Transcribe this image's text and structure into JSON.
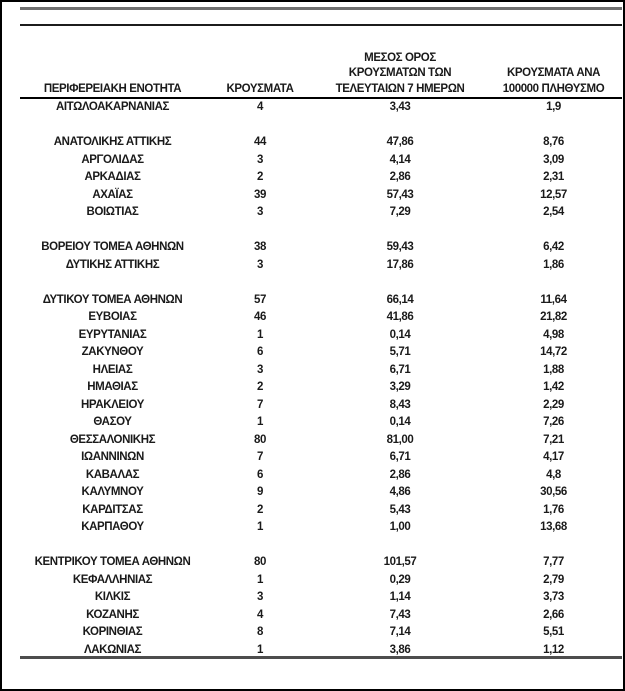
{
  "colors": {
    "text": "#1a1a1a",
    "rule_black": "#000000",
    "rule_dark_gray": "#4d4d4d",
    "rule_gray": "#6f6f6f"
  },
  "table": {
    "headers": {
      "col1": "ΠΕΡΙΦΕΡΕΙΑΚΗ ΕΝΟΤΗΤΑ",
      "col2": "ΚΡΟΥΣΜΑΤΑ",
      "col3_line1": "ΜΕΣΟΣ ΟΡΟΣ",
      "col3_line2": "ΚΡΟΥΣΜΑΤΩΝ ΤΩΝ",
      "col3_line3": "ΤΕΛΕΥΤΑΙΩΝ 7 ΗΜΕΡΩΝ",
      "col4_line1": "ΚΡΟΥΣΜΑΤΑ ΑΝΑ",
      "col4_line2": "100000 ΠΛΗΘΥΣΜΟ"
    },
    "rows": [
      {
        "name": "ΑΙΤΩΛΟΑΚΑΡΝΑΝΙΑΣ",
        "cases": "4",
        "avg7": "3,43",
        "per100k": "1,9"
      },
      {
        "spacer": true
      },
      {
        "name": "ΑΝΑΤΟΛΙΚΗΣ ΑΤΤΙΚΗΣ",
        "cases": "44",
        "avg7": "47,86",
        "per100k": "8,76"
      },
      {
        "name": "ΑΡΓΟΛΙΔΑΣ",
        "cases": "3",
        "avg7": "4,14",
        "per100k": "3,09"
      },
      {
        "name": "ΑΡΚΑΔΙΑΣ",
        "cases": "2",
        "avg7": "2,86",
        "per100k": "2,31"
      },
      {
        "name": "ΑΧΑΪΑΣ",
        "cases": "39",
        "avg7": "57,43",
        "per100k": "12,57"
      },
      {
        "name": "ΒΟΙΩΤΙΑΣ",
        "cases": "3",
        "avg7": "7,29",
        "per100k": "2,54"
      },
      {
        "spacer": true
      },
      {
        "name": "ΒΟΡΕΙΟΥ ΤΟΜΕΑ ΑΘΗΝΩΝ",
        "cases": "38",
        "avg7": "59,43",
        "per100k": "6,42"
      },
      {
        "name": "ΔΥΤΙΚΗΣ ΑΤΤΙΚΗΣ",
        "cases": "3",
        "avg7": "17,86",
        "per100k": "1,86"
      },
      {
        "spacer": true
      },
      {
        "name": "ΔΥΤΙΚΟΥ ΤΟΜΕΑ ΑΘΗΝΩΝ",
        "cases": "57",
        "avg7": "66,14",
        "per100k": "11,64"
      },
      {
        "name": "ΕΥΒΟΙΑΣ",
        "cases": "46",
        "avg7": "41,86",
        "per100k": "21,82"
      },
      {
        "name": "ΕΥΡΥΤΑΝΙΑΣ",
        "cases": "1",
        "avg7": "0,14",
        "per100k": "4,98"
      },
      {
        "name": "ΖΑΚΥΝΘΟΥ",
        "cases": "6",
        "avg7": "5,71",
        "per100k": "14,72"
      },
      {
        "name": "ΗΛΕΙΑΣ",
        "cases": "3",
        "avg7": "6,71",
        "per100k": "1,88"
      },
      {
        "name": "ΗΜΑΘΙΑΣ",
        "cases": "2",
        "avg7": "3,29",
        "per100k": "1,42"
      },
      {
        "name": "ΗΡΑΚΛΕΙΟΥ",
        "cases": "7",
        "avg7": "8,43",
        "per100k": "2,29"
      },
      {
        "name": "ΘΑΣΟΥ",
        "cases": "1",
        "avg7": "0,14",
        "per100k": "7,26"
      },
      {
        "name": "ΘΕΣΣΑΛΟΝΙΚΗΣ",
        "cases": "80",
        "avg7": "81,00",
        "per100k": "7,21"
      },
      {
        "name": "ΙΩΑΝΝΙΝΩΝ",
        "cases": "7",
        "avg7": "6,71",
        "per100k": "4,17"
      },
      {
        "name": "ΚΑΒΑΛΑΣ",
        "cases": "6",
        "avg7": "2,86",
        "per100k": "4,8"
      },
      {
        "name": "ΚΑΛΥΜΝΟΥ",
        "cases": "9",
        "avg7": "4,86",
        "per100k": "30,56"
      },
      {
        "name": "ΚΑΡΔΙΤΣΑΣ",
        "cases": "2",
        "avg7": "5,43",
        "per100k": "1,76"
      },
      {
        "name": "ΚΑΡΠΑΘΟΥ",
        "cases": "1",
        "avg7": "1,00",
        "per100k": "13,68"
      },
      {
        "spacer": true
      },
      {
        "name": "ΚΕΝΤΡΙΚΟΥ ΤΟΜΕΑ ΑΘΗΝΩΝ",
        "cases": "80",
        "avg7": "101,57",
        "per100k": "7,77"
      },
      {
        "name": "ΚΕΦΑΛΛΗΝΙΑΣ",
        "cases": "1",
        "avg7": "0,29",
        "per100k": "2,79"
      },
      {
        "name": "ΚΙΛΚΙΣ",
        "cases": "3",
        "avg7": "1,14",
        "per100k": "3,73"
      },
      {
        "name": "ΚΟΖΑΝΗΣ",
        "cases": "4",
        "avg7": "7,43",
        "per100k": "2,66"
      },
      {
        "name": "ΚΟΡΙΝΘΙΑΣ",
        "cases": "8",
        "avg7": "7,14",
        "per100k": "5,51"
      },
      {
        "name": "ΛΑΚΩΝΙΑΣ",
        "cases": "1",
        "avg7": "3,86",
        "per100k": "1,12"
      }
    ]
  }
}
